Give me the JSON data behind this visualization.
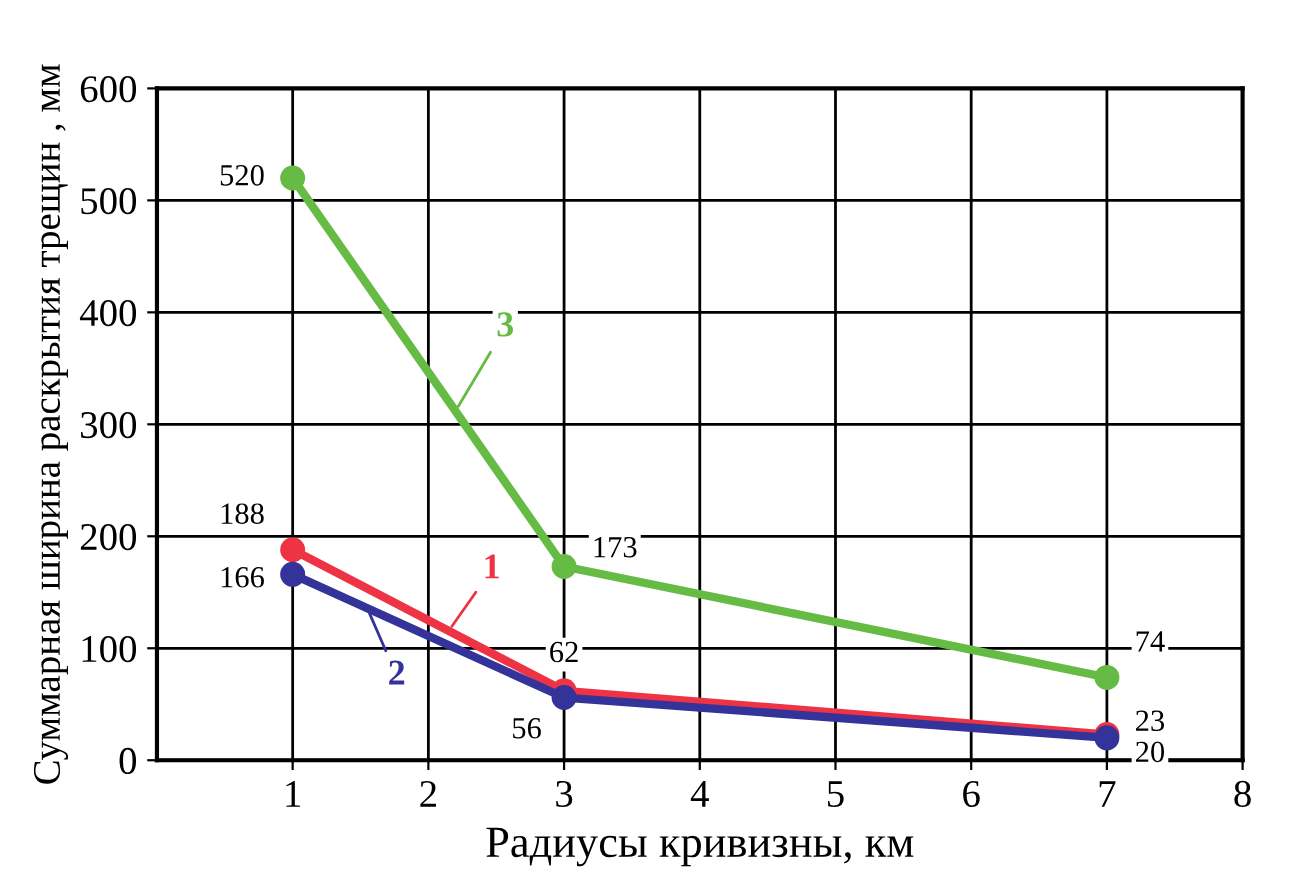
{
  "chart_data": {
    "type": "line",
    "xlabel": "Радиусы кривизны, км",
    "ylabel": "Суммарная ширина раскрытия трещин , мм",
    "x": [
      1,
      3,
      7
    ],
    "series": [
      {
        "name": "1",
        "color": "#ee3344",
        "values": [
          188,
          62,
          23
        ]
      },
      {
        "name": "2",
        "color": "#333399",
        "values": [
          166,
          56,
          20
        ]
      },
      {
        "name": "3",
        "color": "#66bb44",
        "values": [
          520,
          173,
          74
        ]
      }
    ],
    "xlim": [
      0,
      8
    ],
    "xticks": [
      1,
      2,
      3,
      4,
      5,
      6,
      7,
      8
    ],
    "ylim": [
      0,
      600
    ],
    "yticks": [
      0,
      100,
      200,
      300,
      400,
      500,
      600
    ],
    "grid": true,
    "marker": "circle",
    "line_style": "solid",
    "data_labels": true
  }
}
